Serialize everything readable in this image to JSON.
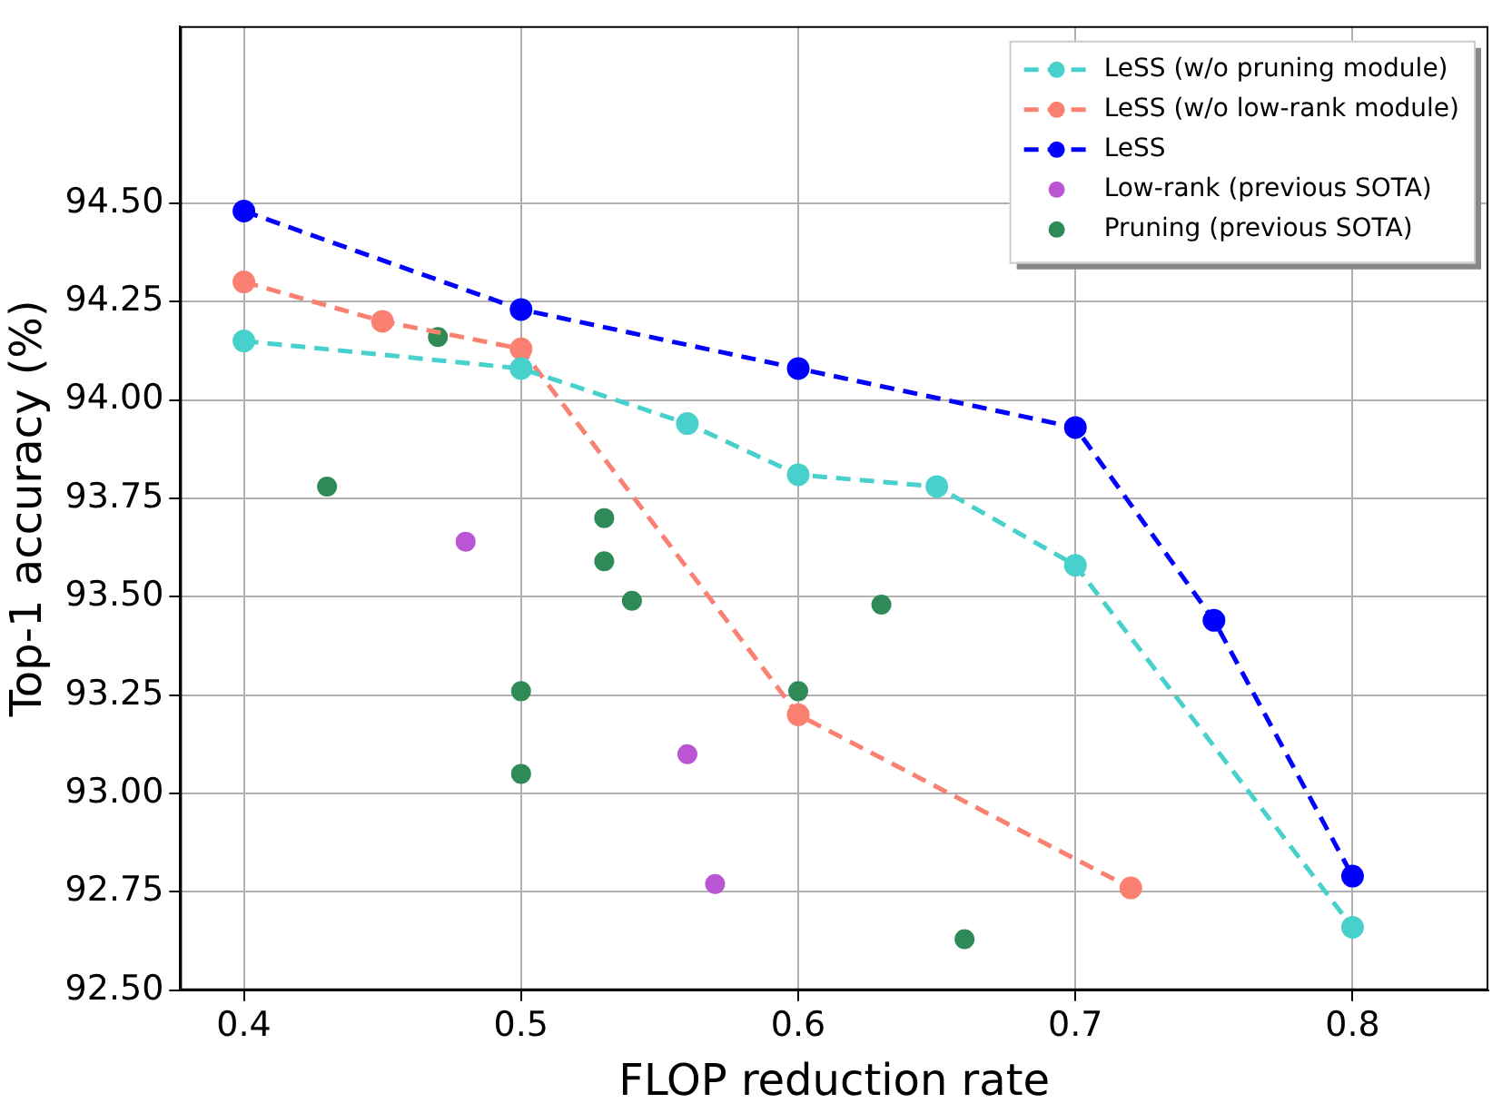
{
  "chart_data": {
    "type": "line",
    "xlabel": "FLOP reduction rate",
    "ylabel": "Top-1 accuracy (%)",
    "xlim": [
      0.377,
      0.849
    ],
    "xticks": [
      0.4,
      0.5,
      0.6,
      0.7,
      0.8
    ],
    "ylim": [
      92.5,
      94.95
    ],
    "yticks": [
      {
        "value": 92.5,
        "label": "92.50"
      },
      {
        "value": 92.75,
        "label": "92.75"
      },
      {
        "value": 93,
        "label": "93.00"
      },
      {
        "value": 93.25,
        "label": "93.25"
      },
      {
        "value": 93.5,
        "label": "93.50"
      },
      {
        "value": 93.75,
        "label": "93.75"
      },
      {
        "value": 94,
        "label": "94.00"
      },
      {
        "value": 94.25,
        "label": "94.25"
      },
      {
        "value": 94.5,
        "label": "94.50"
      }
    ],
    "grid": true,
    "legend": "top right",
    "marker": "circle",
    "line_style": "dashed",
    "series": [
      {
        "name": "LeSS (w/o pruning module)",
        "color": "#48d1cc",
        "x": [
          0.4,
          0.5,
          0.56,
          0.6,
          0.65,
          0.7,
          0.8
        ],
        "values": [
          94.15,
          94.08,
          93.94,
          93.81,
          93.78,
          93.58,
          92.66
        ]
      },
      {
        "name": "LeSS (w/o low-rank module)",
        "color": "#fa8072",
        "x": [
          0.4,
          0.45,
          0.5,
          0.6,
          0.72
        ],
        "values": [
          94.3,
          94.2,
          94.13,
          93.2,
          92.76
        ]
      },
      {
        "name": "LeSS",
        "color": "#0000ff",
        "x": [
          0.4,
          0.5,
          0.6,
          0.7,
          0.75,
          0.8
        ],
        "values": [
          94.48,
          94.23,
          94.08,
          93.93,
          93.44,
          92.79
        ]
      },
      {
        "name": "Low-rank (previous SOTA)",
        "type": "scatter",
        "color": "#ba55d3",
        "x": [
          0.48,
          0.56,
          0.57
        ],
        "values": [
          93.64,
          93.1,
          92.77
        ]
      },
      {
        "name": "Pruning (previous SOTA)",
        "type": "scatter",
        "color": "#2e8b57",
        "x": [
          0.43,
          0.47,
          0.5,
          0.5,
          0.53,
          0.53,
          0.54,
          0.6,
          0.63,
          0.66
        ],
        "values": [
          93.78,
          94.16,
          93.26,
          93.05,
          93.7,
          93.59,
          93.49,
          93.26,
          93.48,
          92.63
        ]
      }
    ]
  }
}
